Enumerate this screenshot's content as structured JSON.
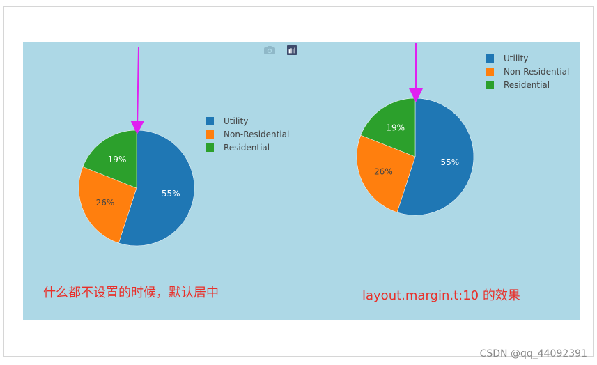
{
  "chart_data": [
    {
      "type": "pie",
      "categories": [
        "Utility",
        "Non-Residential",
        "Residential"
      ],
      "values": [
        55,
        26,
        19
      ],
      "text_labels": [
        "55%",
        "26%",
        "19%"
      ],
      "colors": [
        "#1f77b4",
        "#ff7f0e",
        "#2ca02c"
      ],
      "legend_placement": "right",
      "background": "#add8e6"
    },
    {
      "type": "pie",
      "categories": [
        "Utility",
        "Non-Residential",
        "Residential"
      ],
      "values": [
        55,
        26,
        19
      ],
      "text_labels": [
        "55%",
        "26%",
        "19%"
      ],
      "colors": [
        "#1f77b4",
        "#ff7f0e",
        "#2ca02c"
      ],
      "legend_placement": "top-right",
      "background": "#add8e6"
    }
  ],
  "captions": {
    "left": "什么都不设置的时候，默认居中",
    "right": "layout.margin.t:10   的效果"
  },
  "annotation_arrow_color": "#e020f0",
  "modebar": {
    "icons": [
      "camera-icon",
      "plotly-logo-icon"
    ]
  },
  "watermark": "CSDN @qq_44092391"
}
